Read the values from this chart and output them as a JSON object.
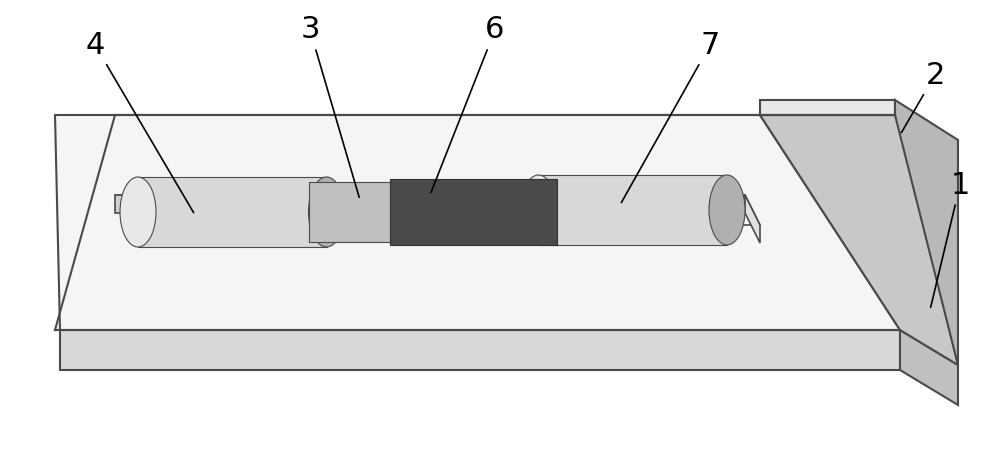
{
  "background_color": "#ffffff",
  "figure_width": 10.0,
  "figure_height": 4.71,
  "label_fontsize": 22,
  "colors": {
    "substrate_top": "#f0f0f0",
    "substrate_front": "#d8d8d8",
    "substrate_right_wall": "#c8c8c8",
    "right_slab_front": "#c8c8c8",
    "right_slab_top": "#e8e8e8",
    "right_slab_right": "#b8b8b8",
    "pad_top": "#f8f8f8",
    "pad_front": "#d0d0d0",
    "pad_right": "#e0e0e0",
    "cylinder_body": "#d8d8d8",
    "cylinder_end_dark": "#b0b0b0",
    "cylinder_end_light": "#e8e8e8",
    "light_mat": "#c0c0c0",
    "dark_mat": "#4a4a4a",
    "outline": "#4a4a4a"
  }
}
